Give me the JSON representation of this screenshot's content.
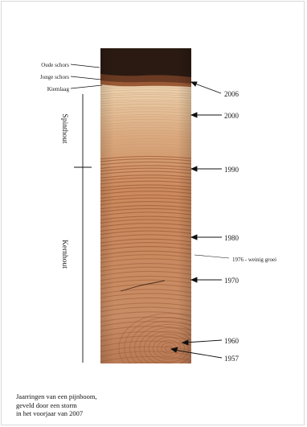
{
  "layer_labels": [
    "Oude schors",
    "Jonge schors",
    "Kiemlaag"
  ],
  "zones": {
    "sapwood": "Spinthout",
    "heartwood": "Kernhout"
  },
  "year_markers": [
    {
      "label": "2006"
    },
    {
      "label": "2000"
    },
    {
      "label": "1990"
    },
    {
      "label": "1980"
    },
    {
      "label": "1976 - weinig groei"
    },
    {
      "label": "1970"
    },
    {
      "label": "1960"
    },
    {
      "label": "1957"
    }
  ],
  "caption": {
    "line1": "Jaarringen van een pijnboom,",
    "line2": "geveld door een storm",
    "line3": "in het voorjaar van 2007"
  },
  "colors": {
    "bark_dark": "#2a1a12",
    "sapwood_light": "#e8cfae",
    "heartwood_mid": "#c9865c",
    "heartwood_dark": "#a9623d",
    "line": "#111111"
  }
}
